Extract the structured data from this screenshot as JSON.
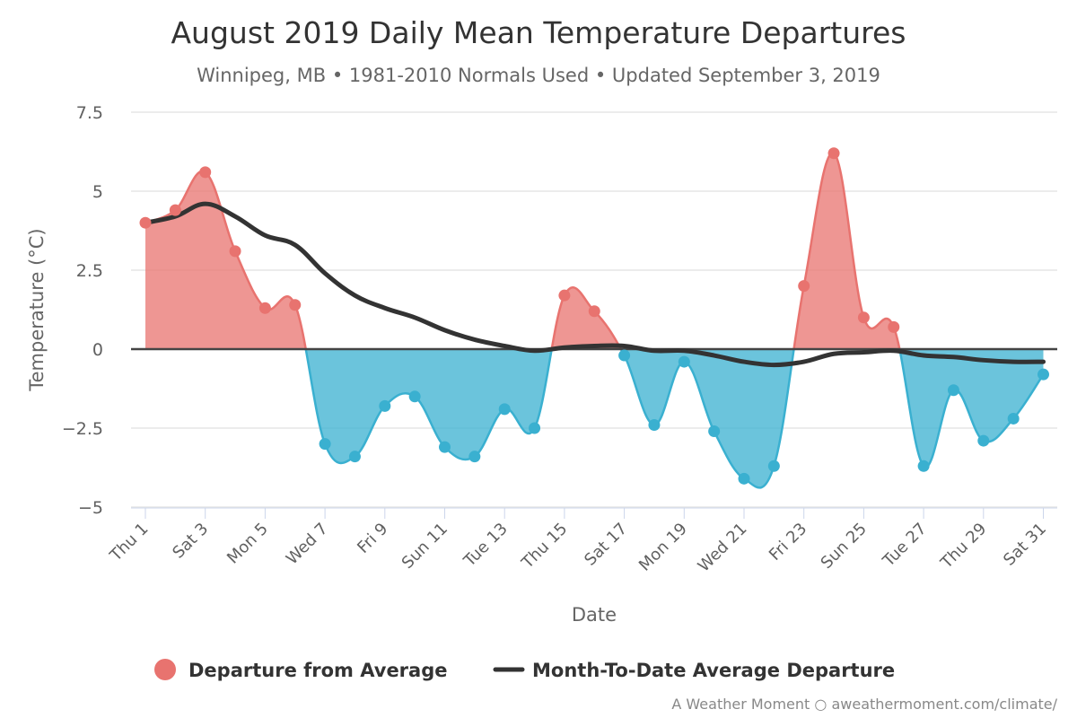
{
  "chart_data": {
    "type": "area",
    "title": "August 2019 Daily Mean Temperature Departures",
    "subtitle": "Winnipeg, MB • 1981-2010 Normals Used • Updated September 3, 2019",
    "xlabel": "Date",
    "ylabel": "Temperature (°C)",
    "ylim": [
      -5,
      7.5
    ],
    "yticks": [
      "7.5",
      "5",
      "2.5",
      "0",
      "−2.5",
      "−5"
    ],
    "ytick_values": [
      7.5,
      5,
      2.5,
      0,
      -2.5,
      -5
    ],
    "x": [
      1,
      2,
      3,
      4,
      5,
      6,
      7,
      8,
      9,
      10,
      11,
      12,
      13,
      14,
      15,
      16,
      17,
      18,
      19,
      20,
      21,
      22,
      23,
      24,
      25,
      26,
      27,
      28,
      29,
      30,
      31
    ],
    "xticks": [
      "Thu 1",
      "Sat 3",
      "Mon 5",
      "Wed 7",
      "Fri 9",
      "Sun 11",
      "Tue 13",
      "Thu 15",
      "Sat 17",
      "Mon 19",
      "Wed 21",
      "Fri 23",
      "Sun 25",
      "Tue 27",
      "Thu 29",
      "Sat 31"
    ],
    "xtick_days": [
      1,
      3,
      5,
      7,
      9,
      11,
      13,
      15,
      17,
      19,
      21,
      23,
      25,
      27,
      29,
      31
    ],
    "grid": true,
    "legend_position": "bottom",
    "series": [
      {
        "name": "Departure from Average",
        "type": "area",
        "positive_color": "#e8736f",
        "negative_color": "#3ab0d0",
        "values": [
          4.0,
          4.4,
          5.6,
          3.1,
          1.3,
          1.4,
          -3.0,
          -3.4,
          -1.8,
          -1.5,
          -3.1,
          -3.4,
          -1.9,
          -2.5,
          1.7,
          1.2,
          -0.2,
          -2.4,
          -0.4,
          -2.6,
          -4.1,
          -3.7,
          2.0,
          6.2,
          1.0,
          0.7,
          -3.7,
          -1.3,
          -2.9,
          -2.2,
          -0.8
        ]
      },
      {
        "name": "Month-To-Date Average Departure",
        "type": "line",
        "color": "#333333",
        "values": [
          4.0,
          4.2,
          4.6,
          4.2,
          3.6,
          3.3,
          2.4,
          1.7,
          1.3,
          1.0,
          0.6,
          0.3,
          0.1,
          -0.05,
          0.05,
          0.1,
          0.1,
          -0.05,
          -0.05,
          -0.2,
          -0.4,
          -0.5,
          -0.4,
          -0.15,
          -0.1,
          -0.05,
          -0.2,
          -0.25,
          -0.35,
          -0.4,
          -0.4
        ]
      }
    ]
  },
  "credit": {
    "prefix": "A Weather Moment ○ ",
    "url": "aweathermoment.com/climate/"
  }
}
